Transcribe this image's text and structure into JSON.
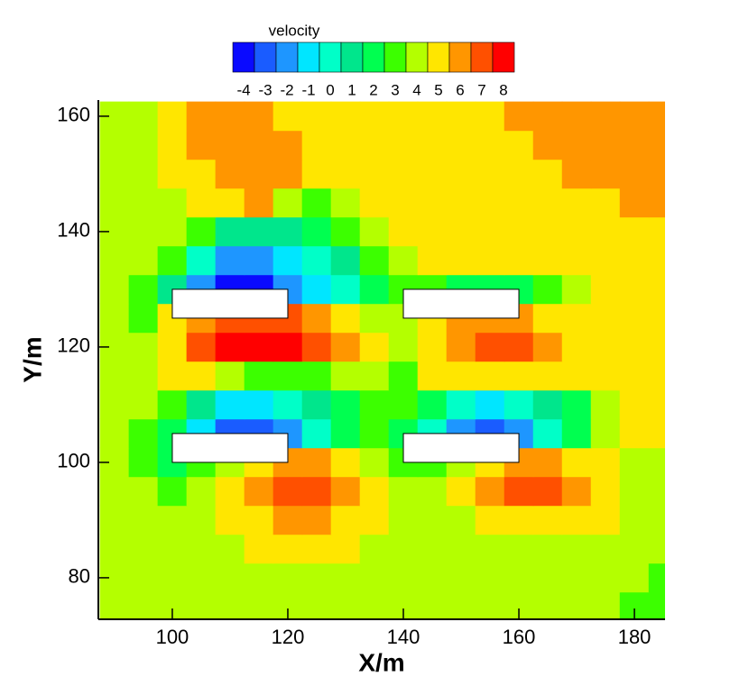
{
  "chart_data": {
    "type": "contour",
    "xlabel": "X/m",
    "ylabel": "Y/m",
    "xlim": [
      87.2,
      185.3
    ],
    "ylim": [
      72.8,
      162.8
    ],
    "xticks": [
      100,
      120,
      140,
      160,
      180
    ],
    "yticks": [
      80,
      100,
      120,
      140,
      160
    ],
    "colorbar": {
      "title": "velocity",
      "levels": [
        -4,
        -3,
        -2,
        -1,
        0,
        1,
        2,
        3,
        4,
        5,
        6,
        7,
        8
      ],
      "colors": [
        "#0a0aff",
        "#1a5cff",
        "#1e96ff",
        "#00e6ff",
        "#00ffc8",
        "#00e68c",
        "#00ff50",
        "#3cff00",
        "#b4ff00",
        "#ffe600",
        "#ff9600",
        "#ff5000",
        "#ff0000"
      ]
    },
    "obstacles": [
      {
        "x": [
          100,
          120
        ],
        "y": [
          125,
          130
        ]
      },
      {
        "x": [
          140,
          160
        ],
        "y": [
          125,
          130
        ]
      },
      {
        "x": [
          100,
          120
        ],
        "y": [
          100,
          105
        ]
      },
      {
        "x": [
          140,
          160
        ],
        "y": [
          100,
          105
        ]
      }
    ],
    "field": {
      "x": [
        90,
        95,
        100,
        105,
        110,
        115,
        120,
        125,
        130,
        135,
        140,
        145,
        150,
        155,
        160,
        165,
        170,
        175,
        180,
        185
      ],
      "y": [
        75,
        80,
        85,
        90,
        95,
        100,
        105,
        110,
        115,
        120,
        125,
        130,
        135,
        140,
        145,
        150,
        155,
        160
      ],
      "z": [
        [
          4,
          4,
          4,
          4,
          4,
          4,
          4,
          4,
          4,
          4,
          4,
          4,
          4,
          4,
          4,
          4,
          4,
          4,
          3,
          3
        ],
        [
          4,
          4,
          4,
          4,
          4,
          4,
          4,
          4,
          4,
          4,
          4,
          4,
          4,
          4,
          4,
          4,
          4,
          4,
          4,
          3
        ],
        [
          4,
          4,
          4,
          4,
          4,
          5,
          5,
          5,
          5,
          4,
          4,
          4,
          4,
          4,
          4,
          4,
          4,
          4,
          4,
          4
        ],
        [
          4,
          4,
          4,
          4,
          5,
          5,
          6,
          6,
          5,
          5,
          4,
          4,
          4,
          5,
          5,
          5,
          5,
          5,
          4,
          4
        ],
        [
          4,
          4,
          3,
          4,
          5,
          6,
          7,
          7,
          6,
          5,
          4,
          4,
          5,
          6,
          7,
          7,
          6,
          5,
          4,
          4
        ],
        [
          4,
          3,
          2,
          3,
          4,
          5,
          6,
          6,
          5,
          4,
          3,
          3,
          4,
          5,
          6,
          6,
          5,
          5,
          4,
          4
        ],
        [
          4,
          3,
          2,
          -1,
          -3,
          -3,
          -2,
          0,
          2,
          3,
          2,
          0,
          -2,
          -3,
          -2,
          0,
          2,
          4,
          5,
          5
        ],
        [
          4,
          4,
          3,
          1,
          -1,
          -1,
          0,
          1,
          2,
          3,
          3,
          2,
          0,
          -1,
          0,
          1,
          2,
          4,
          5,
          5
        ],
        [
          4,
          4,
          5,
          5,
          4,
          3,
          3,
          3,
          4,
          4,
          3,
          5,
          5,
          5,
          5,
          5,
          5,
          5,
          5,
          5
        ],
        [
          4,
          4,
          5,
          7,
          8,
          8,
          8,
          7,
          6,
          5,
          4,
          5,
          6,
          7,
          7,
          6,
          5,
          5,
          5,
          5
        ],
        [
          4,
          3,
          5,
          6,
          7,
          7,
          7,
          6,
          5,
          4,
          4,
          5,
          6,
          6,
          6,
          5,
          5,
          5,
          5,
          5
        ],
        [
          4,
          3,
          1,
          -2,
          -4,
          -4,
          -2,
          -1,
          0,
          2,
          3,
          3,
          2,
          2,
          2,
          3,
          4,
          5,
          5,
          5
        ],
        [
          4,
          4,
          3,
          0,
          -2,
          -2,
          -1,
          0,
          1,
          3,
          4,
          5,
          5,
          5,
          5,
          5,
          5,
          5,
          5,
          5
        ],
        [
          4,
          4,
          4,
          3,
          1,
          1,
          1,
          2,
          3,
          4,
          5,
          5,
          5,
          5,
          5,
          5,
          5,
          5,
          5,
          5
        ],
        [
          4,
          4,
          4,
          5,
          5,
          6,
          4,
          3,
          4,
          5,
          5,
          5,
          5,
          5,
          5,
          5,
          5,
          5,
          6,
          6
        ],
        [
          4,
          4,
          5,
          5,
          6,
          6,
          6,
          5,
          5,
          5,
          5,
          5,
          5,
          5,
          5,
          5,
          6,
          6,
          6,
          6
        ],
        [
          4,
          4,
          5,
          6,
          6,
          6,
          6,
          5,
          5,
          5,
          5,
          5,
          5,
          5,
          5,
          6,
          6,
          6,
          6,
          6
        ],
        [
          4,
          4,
          5,
          6,
          6,
          6,
          5,
          5,
          5,
          5,
          5,
          5,
          5,
          5,
          6,
          6,
          6,
          6,
          6,
          6
        ]
      ]
    }
  }
}
